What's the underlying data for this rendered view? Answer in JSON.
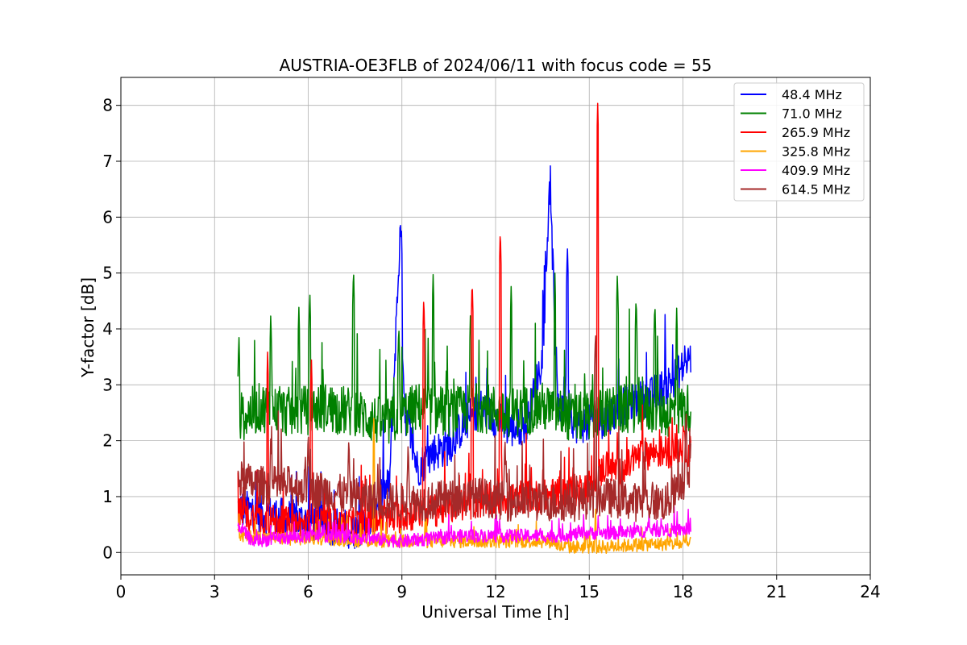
{
  "chart_data": {
    "type": "line",
    "title": "AUSTRIA-OE3FLB of 2024/06/11 with focus code = 55",
    "xlabel": "Universal Time [h]",
    "ylabel": "Y-factor [dB]",
    "xlim": [
      0,
      24
    ],
    "ylim": [
      -0.4,
      8.5
    ],
    "xticks": [
      0,
      3,
      6,
      9,
      12,
      15,
      18,
      21,
      24
    ],
    "yticks": [
      0,
      1,
      2,
      3,
      4,
      5,
      6,
      7,
      8
    ],
    "xtick_labels": [
      "0",
      "3",
      "6",
      "9",
      "12",
      "15",
      "18",
      "21",
      "24"
    ],
    "ytick_labels": [
      "0",
      "1",
      "2",
      "3",
      "4",
      "5",
      "6",
      "7",
      "8"
    ],
    "grid": true,
    "legend_position": "top-right",
    "series": [
      {
        "name": " 48.4 MHz",
        "color": "#0000ff",
        "x": [
          3.75,
          4.5,
          5.5,
          6.5,
          7.5,
          8.0,
          8.3,
          8.6,
          8.85,
          8.95,
          9.0,
          9.1,
          9.5,
          10.0,
          10.5,
          11.0,
          11.5,
          12.0,
          12.5,
          13.0,
          13.5,
          13.7,
          13.8,
          14.0,
          14.3,
          14.5,
          15.0,
          15.5,
          16.0,
          16.5,
          17.0,
          17.5,
          18.0,
          18.25
        ],
        "y": [
          0.8,
          0.7,
          0.6,
          0.5,
          0.4,
          0.6,
          1.0,
          1.2,
          4.5,
          5.8,
          4.0,
          2.5,
          1.5,
          1.8,
          1.9,
          2.3,
          2.6,
          2.4,
          2.2,
          2.3,
          3.5,
          5.9,
          5.7,
          2.5,
          3.0,
          2.3,
          2.3,
          2.4,
          2.6,
          2.7,
          2.8,
          3.0,
          3.3,
          3.5
        ],
        "peaks": [
          [
            8.98,
            5.9
          ],
          [
            13.72,
            6.7
          ],
          [
            14.3,
            5.5
          ]
        ]
      },
      {
        "name": " 71.0 MHz",
        "color": "#008000",
        "x": [
          3.75,
          4.5,
          5.5,
          6.5,
          7.5,
          8.5,
          9.5,
          10.5,
          11.5,
          12.5,
          13.5,
          14.5,
          15.5,
          16.5,
          17.5,
          18.25
        ],
        "y": [
          2.4,
          2.6,
          2.5,
          2.6,
          2.5,
          2.3,
          2.6,
          2.5,
          2.6,
          2.5,
          2.6,
          2.4,
          2.5,
          2.6,
          2.5,
          2.6
        ],
        "peaks": [
          [
            3.78,
            3.9
          ],
          [
            4.8,
            4.3
          ],
          [
            5.7,
            4.4
          ],
          [
            6.05,
            4.7
          ],
          [
            7.45,
            5.1
          ],
          [
            8.9,
            4.1
          ],
          [
            10.0,
            5.0
          ],
          [
            11.2,
            4.4
          ],
          [
            12.5,
            4.8
          ],
          [
            13.9,
            5.0
          ],
          [
            15.9,
            5.0
          ],
          [
            16.5,
            4.6
          ],
          [
            17.1,
            4.5
          ],
          [
            17.8,
            4.4
          ]
        ]
      },
      {
        "name": "265.9 MHz",
        "color": "#ff0000",
        "x": [
          3.75,
          4.5,
          5.5,
          6.5,
          7.5,
          8.5,
          9.5,
          10.5,
          11.5,
          12.5,
          13.5,
          14.5,
          15.0,
          15.3,
          15.6,
          16.0,
          16.5,
          17.0,
          17.5,
          18.0,
          18.25
        ],
        "y": [
          0.7,
          0.6,
          0.5,
          0.5,
          0.5,
          0.6,
          0.7,
          0.8,
          0.9,
          1.0,
          1.0,
          1.1,
          1.2,
          1.4,
          1.6,
          1.4,
          1.7,
          1.8,
          1.8,
          1.9,
          1.8
        ],
        "peaks": [
          [
            4.7,
            3.6
          ],
          [
            6.1,
            3.5
          ],
          [
            9.7,
            4.6
          ],
          [
            11.25,
            4.9
          ],
          [
            12.15,
            5.8
          ],
          [
            15.27,
            8.05
          ]
        ]
      },
      {
        "name": "325.8 MHz",
        "color": "#ffa500",
        "x": [
          3.75,
          5.0,
          6.5,
          8.0,
          9.5,
          11.0,
          12.5,
          13.9,
          14.0,
          15.5,
          17.0,
          18.25
        ],
        "y": [
          0.3,
          0.25,
          0.25,
          0.2,
          0.2,
          0.2,
          0.2,
          0.2,
          0.1,
          0.1,
          0.15,
          0.15
        ],
        "peaks": [
          [
            8.1,
            2.4
          ],
          [
            15.2,
            0.9
          ]
        ]
      },
      {
        "name": "409.9 MHz",
        "color": "#ff00ff",
        "x": [
          3.75,
          4.2,
          5.0,
          6.0,
          7.0,
          8.0,
          9.0,
          10.0,
          11.0,
          12.0,
          13.0,
          14.0,
          15.0,
          16.0,
          17.0,
          18.0,
          18.25
        ],
        "y": [
          0.5,
          0.2,
          0.25,
          0.3,
          0.3,
          0.25,
          0.2,
          0.25,
          0.3,
          0.3,
          0.3,
          0.3,
          0.35,
          0.35,
          0.4,
          0.4,
          0.4
        ],
        "peaks": [
          [
            18.1,
            0.65
          ]
        ]
      },
      {
        "name": "614.5 MHz",
        "color": "#a52a2a",
        "x": [
          3.75,
          4.5,
          5.5,
          6.5,
          7.5,
          8.5,
          9.5,
          10.5,
          11.5,
          12.5,
          13.5,
          14.5,
          15.5,
          16.5,
          17.5,
          18.25
        ],
        "y": [
          1.3,
          1.2,
          1.2,
          1.1,
          1.0,
          0.9,
          0.9,
          0.95,
          1.0,
          0.9,
          0.9,
          0.9,
          1.0,
          0.9,
          0.9,
          1.4
        ],
        "peaks": [
          [
            4.8,
            2.1
          ],
          [
            6.0,
            2.2
          ],
          [
            7.3,
            2.1
          ],
          [
            9.2,
            2.0
          ],
          [
            12.3,
            2.1
          ],
          [
            15.2,
            4.0
          ],
          [
            18.1,
            2.6
          ]
        ]
      }
    ]
  }
}
